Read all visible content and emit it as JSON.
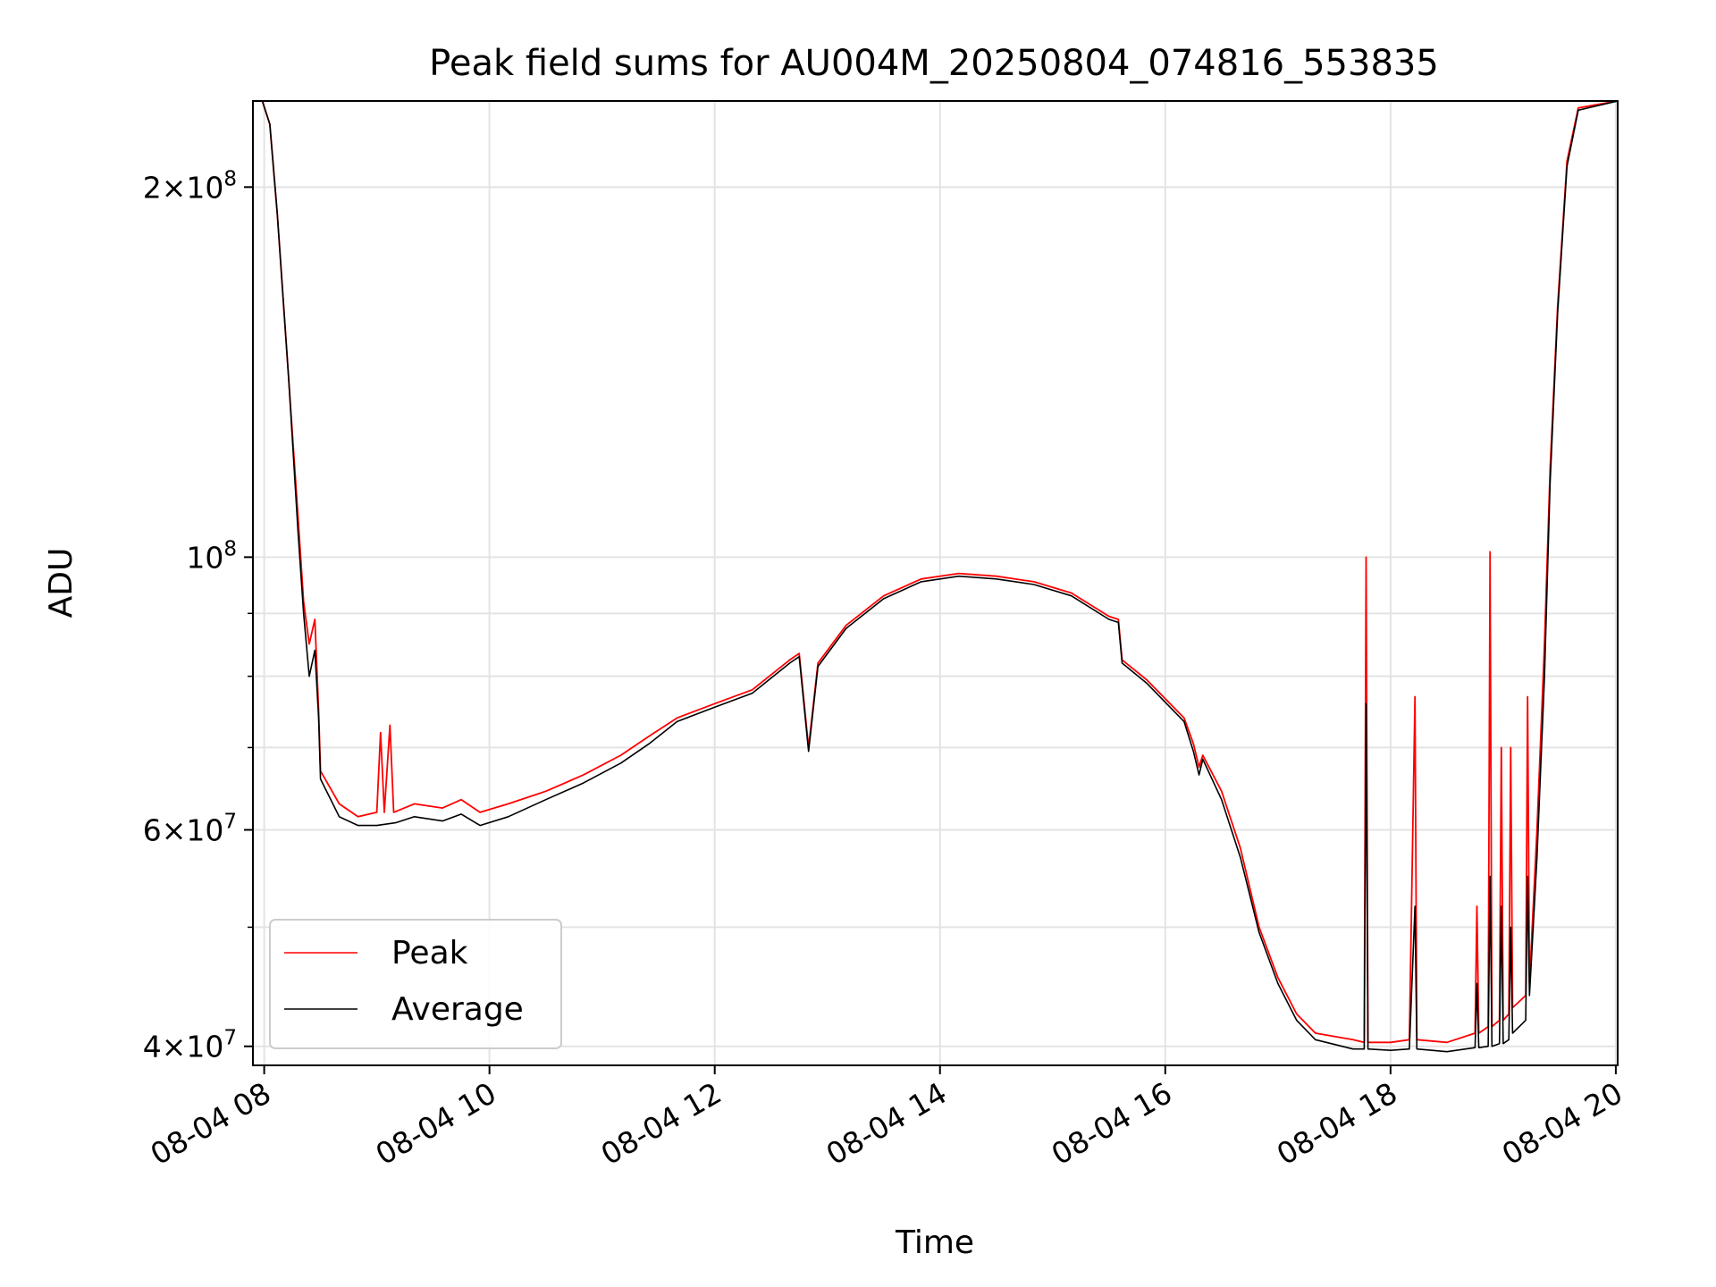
{
  "chart_data": {
    "type": "line",
    "title": "Peak field sums for AU004M_20250804_074816_553835",
    "xlabel": "Time",
    "ylabel": "ADU",
    "yscale": "log",
    "xlim": [
      "2025-08-04 07:54",
      "2025-08-04 20:01"
    ],
    "ylim": [
      38600000,
      235000000
    ],
    "grid": true,
    "legend": "lower-left",
    "x_ticks": [
      {
        "x": "2025-08-04 08:00",
        "label": "08-04 08"
      },
      {
        "x": "2025-08-04 10:00",
        "label": "08-04 10"
      },
      {
        "x": "2025-08-04 12:00",
        "label": "08-04 12"
      },
      {
        "x": "2025-08-04 14:00",
        "label": "08-04 14"
      },
      {
        "x": "2025-08-04 16:00",
        "label": "08-04 16"
      },
      {
        "x": "2025-08-04 18:00",
        "label": "08-04 18"
      },
      {
        "x": "2025-08-04 20:00",
        "label": "08-04 20"
      }
    ],
    "y_ticks": [
      {
        "y": 40000000,
        "base": "4",
        "exp": "7"
      },
      {
        "y": 60000000,
        "base": "6",
        "exp": "7"
      },
      {
        "y": 100000000,
        "base": "",
        "exp": "8"
      },
      {
        "y": 200000000,
        "base": "2",
        "exp": "8"
      }
    ],
    "y_minor_ticks": [
      50000000,
      70000000,
      80000000,
      90000000
    ],
    "series": [
      {
        "name": "Peak",
        "color": "#ff0000",
        "points": [
          [
            "2025-08-04 07:54",
            235000000
          ],
          [
            "2025-08-04 07:59",
            235000000
          ],
          [
            "2025-08-04 08:03",
            225000000
          ],
          [
            "2025-08-04 08:07",
            190000000
          ],
          [
            "2025-08-04 08:13",
            140000000
          ],
          [
            "2025-08-04 08:18",
            108000000
          ],
          [
            "2025-08-04 08:21",
            92000000
          ],
          [
            "2025-08-04 08:24",
            85000000
          ],
          [
            "2025-08-04 08:27",
            89000000
          ],
          [
            "2025-08-04 08:29",
            75000000
          ],
          [
            "2025-08-04 08:30",
            67000000
          ],
          [
            "2025-08-04 08:40",
            63000000
          ],
          [
            "2025-08-04 08:50",
            61500000
          ],
          [
            "2025-08-04 09:00",
            62000000
          ],
          [
            "2025-08-04 09:02",
            72000000
          ],
          [
            "2025-08-04 09:04",
            62000000
          ],
          [
            "2025-08-04 09:07",
            73000000
          ],
          [
            "2025-08-04 09:09",
            62000000
          ],
          [
            "2025-08-04 09:20",
            63000000
          ],
          [
            "2025-08-04 09:35",
            62500000
          ],
          [
            "2025-08-04 09:45",
            63500000
          ],
          [
            "2025-08-04 09:55",
            62000000
          ],
          [
            "2025-08-04 10:10",
            63000000
          ],
          [
            "2025-08-04 10:30",
            64500000
          ],
          [
            "2025-08-04 10:50",
            66500000
          ],
          [
            "2025-08-04 11:10",
            69000000
          ],
          [
            "2025-08-04 11:25",
            71500000
          ],
          [
            "2025-08-04 11:40",
            74000000
          ],
          [
            "2025-08-04 12:00",
            76000000
          ],
          [
            "2025-08-04 12:20",
            78000000
          ],
          [
            "2025-08-04 12:40",
            82500000
          ],
          [
            "2025-08-04 12:45",
            83500000
          ],
          [
            "2025-08-04 12:50",
            70000000
          ],
          [
            "2025-08-04 12:55",
            82000000
          ],
          [
            "2025-08-04 13:10",
            88000000
          ],
          [
            "2025-08-04 13:30",
            93000000
          ],
          [
            "2025-08-04 13:50",
            96000000
          ],
          [
            "2025-08-04 14:10",
            97000000
          ],
          [
            "2025-08-04 14:30",
            96500000
          ],
          [
            "2025-08-04 14:50",
            95500000
          ],
          [
            "2025-08-04 15:10",
            93500000
          ],
          [
            "2025-08-04 15:30",
            89500000
          ],
          [
            "2025-08-04 15:35",
            89000000
          ],
          [
            "2025-08-04 15:37",
            82500000
          ],
          [
            "2025-08-04 15:50",
            79500000
          ],
          [
            "2025-08-04 16:10",
            74000000
          ],
          [
            "2025-08-04 16:15",
            70500000
          ],
          [
            "2025-08-04 16:18",
            67500000
          ],
          [
            "2025-08-04 16:20",
            69000000
          ],
          [
            "2025-08-04 16:30",
            64500000
          ],
          [
            "2025-08-04 16:40",
            58000000
          ],
          [
            "2025-08-04 16:50",
            50000000
          ],
          [
            "2025-08-04 17:00",
            45500000
          ],
          [
            "2025-08-04 17:10",
            42500000
          ],
          [
            "2025-08-04 17:20",
            41000000
          ],
          [
            "2025-08-04 17:40",
            40500000
          ],
          [
            "2025-08-04 17:46",
            40300000
          ],
          [
            "2025-08-04 17:47",
            100000000
          ],
          [
            "2025-08-04 17:48",
            40300000
          ],
          [
            "2025-08-04 18:00",
            40300000
          ],
          [
            "2025-08-04 18:10",
            40500000
          ],
          [
            "2025-08-04 18:13",
            77000000
          ],
          [
            "2025-08-04 18:14",
            40500000
          ],
          [
            "2025-08-04 18:30",
            40300000
          ],
          [
            "2025-08-04 18:45",
            41000000
          ],
          [
            "2025-08-04 18:46",
            52000000
          ],
          [
            "2025-08-04 18:47",
            41000000
          ],
          [
            "2025-08-04 18:52",
            41500000
          ],
          [
            "2025-08-04 18:53",
            101000000
          ],
          [
            "2025-08-04 18:54",
            41500000
          ],
          [
            "2025-08-04 18:58",
            42000000
          ],
          [
            "2025-08-04 18:59",
            70000000
          ],
          [
            "2025-08-04 19:00",
            42000000
          ],
          [
            "2025-08-04 19:03",
            42500000
          ],
          [
            "2025-08-04 19:04",
            70000000
          ],
          [
            "2025-08-04 19:05",
            43000000
          ],
          [
            "2025-08-04 19:12",
            44000000
          ],
          [
            "2025-08-04 19:13",
            77000000
          ],
          [
            "2025-08-04 19:14",
            45000000
          ],
          [
            "2025-08-04 19:18",
            60000000
          ],
          [
            "2025-08-04 19:22",
            85000000
          ],
          [
            "2025-08-04 19:25",
            118000000
          ],
          [
            "2025-08-04 19:29",
            160000000
          ],
          [
            "2025-08-04 19:34",
            210000000
          ],
          [
            "2025-08-04 19:40",
            232000000
          ],
          [
            "2025-08-04 20:01",
            235000000
          ]
        ]
      },
      {
        "name": "Average",
        "color": "#000000",
        "points": [
          [
            "2025-08-04 07:54",
            235000000
          ],
          [
            "2025-08-04 07:59",
            235000000
          ],
          [
            "2025-08-04 08:03",
            225000000
          ],
          [
            "2025-08-04 08:07",
            190000000
          ],
          [
            "2025-08-04 08:13",
            140000000
          ],
          [
            "2025-08-04 08:18",
            105000000
          ],
          [
            "2025-08-04 08:21",
            90000000
          ],
          [
            "2025-08-04 08:24",
            80000000
          ],
          [
            "2025-08-04 08:27",
            84000000
          ],
          [
            "2025-08-04 08:29",
            74000000
          ],
          [
            "2025-08-04 08:30",
            66000000
          ],
          [
            "2025-08-04 08:40",
            61500000
          ],
          [
            "2025-08-04 08:50",
            60500000
          ],
          [
            "2025-08-04 09:00",
            60500000
          ],
          [
            "2025-08-04 09:10",
            60800000
          ],
          [
            "2025-08-04 09:20",
            61500000
          ],
          [
            "2025-08-04 09:35",
            61000000
          ],
          [
            "2025-08-04 09:45",
            61800000
          ],
          [
            "2025-08-04 09:55",
            60500000
          ],
          [
            "2025-08-04 10:10",
            61500000
          ],
          [
            "2025-08-04 10:30",
            63500000
          ],
          [
            "2025-08-04 10:50",
            65500000
          ],
          [
            "2025-08-04 11:10",
            68000000
          ],
          [
            "2025-08-04 11:25",
            70500000
          ],
          [
            "2025-08-04 11:40",
            73500000
          ],
          [
            "2025-08-04 12:00",
            75500000
          ],
          [
            "2025-08-04 12:20",
            77500000
          ],
          [
            "2025-08-04 12:40",
            82000000
          ],
          [
            "2025-08-04 12:45",
            83000000
          ],
          [
            "2025-08-04 12:50",
            69500000
          ],
          [
            "2025-08-04 12:55",
            81500000
          ],
          [
            "2025-08-04 13:10",
            87500000
          ],
          [
            "2025-08-04 13:30",
            92500000
          ],
          [
            "2025-08-04 13:50",
            95500000
          ],
          [
            "2025-08-04 14:10",
            96500000
          ],
          [
            "2025-08-04 14:30",
            96000000
          ],
          [
            "2025-08-04 14:50",
            95000000
          ],
          [
            "2025-08-04 15:10",
            93000000
          ],
          [
            "2025-08-04 15:30",
            89000000
          ],
          [
            "2025-08-04 15:35",
            88500000
          ],
          [
            "2025-08-04 15:37",
            82000000
          ],
          [
            "2025-08-04 15:50",
            79000000
          ],
          [
            "2025-08-04 16:10",
            73500000
          ],
          [
            "2025-08-04 16:15",
            69500000
          ],
          [
            "2025-08-04 16:18",
            66500000
          ],
          [
            "2025-08-04 16:20",
            68500000
          ],
          [
            "2025-08-04 16:30",
            63500000
          ],
          [
            "2025-08-04 16:40",
            57000000
          ],
          [
            "2025-08-04 16:50",
            49500000
          ],
          [
            "2025-08-04 17:00",
            45000000
          ],
          [
            "2025-08-04 17:10",
            42000000
          ],
          [
            "2025-08-04 17:20",
            40500000
          ],
          [
            "2025-08-04 17:40",
            39800000
          ],
          [
            "2025-08-04 17:46",
            39800000
          ],
          [
            "2025-08-04 17:47",
            76000000
          ],
          [
            "2025-08-04 17:48",
            39800000
          ],
          [
            "2025-08-04 18:00",
            39700000
          ],
          [
            "2025-08-04 18:10",
            39800000
          ],
          [
            "2025-08-04 18:13",
            52000000
          ],
          [
            "2025-08-04 18:14",
            39800000
          ],
          [
            "2025-08-04 18:30",
            39600000
          ],
          [
            "2025-08-04 18:45",
            39900000
          ],
          [
            "2025-08-04 18:46",
            45000000
          ],
          [
            "2025-08-04 18:47",
            39900000
          ],
          [
            "2025-08-04 18:52",
            40000000
          ],
          [
            "2025-08-04 18:53",
            55000000
          ],
          [
            "2025-08-04 18:54",
            40000000
          ],
          [
            "2025-08-04 18:58",
            40200000
          ],
          [
            "2025-08-04 18:59",
            52000000
          ],
          [
            "2025-08-04 19:00",
            40200000
          ],
          [
            "2025-08-04 19:03",
            40500000
          ],
          [
            "2025-08-04 19:04",
            50000000
          ],
          [
            "2025-08-04 19:05",
            41000000
          ],
          [
            "2025-08-04 19:12",
            42000000
          ],
          [
            "2025-08-04 19:13",
            55000000
          ],
          [
            "2025-08-04 19:14",
            44000000
          ],
          [
            "2025-08-04 19:18",
            57000000
          ],
          [
            "2025-08-04 19:22",
            80000000
          ],
          [
            "2025-08-04 19:25",
            115000000
          ],
          [
            "2025-08-04 19:29",
            158000000
          ],
          [
            "2025-08-04 19:34",
            208000000
          ],
          [
            "2025-08-04 19:40",
            231000000
          ],
          [
            "2025-08-04 20:01",
            235000000
          ]
        ]
      }
    ]
  }
}
